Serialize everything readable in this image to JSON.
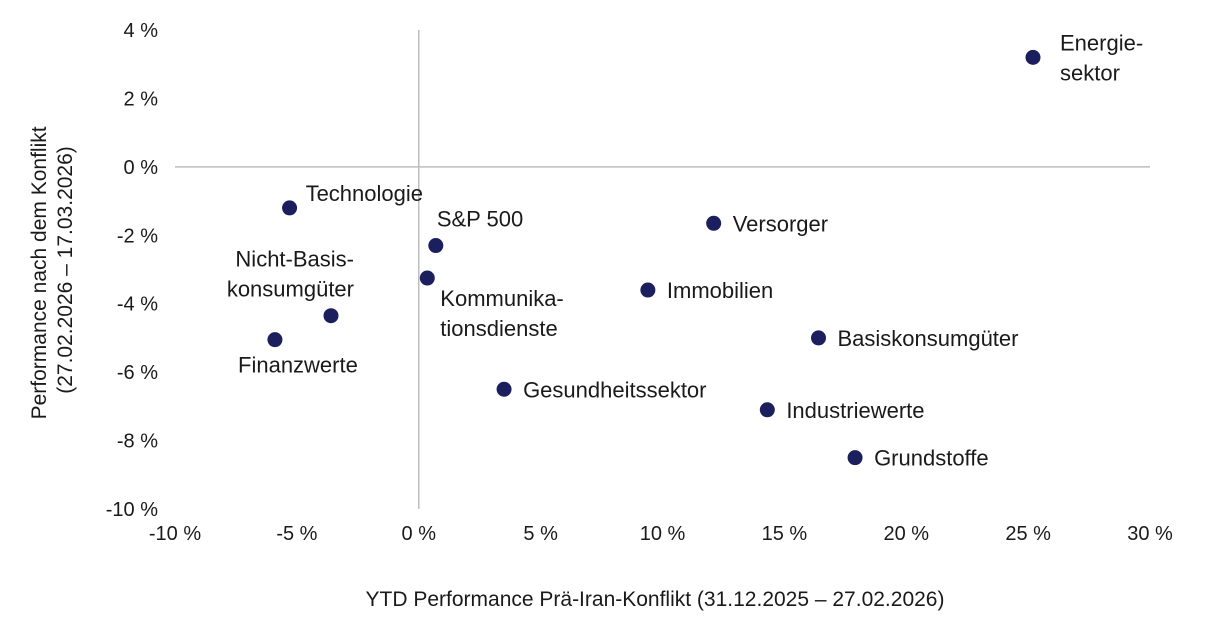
{
  "chart_data": {
    "type": "scatter",
    "title": "",
    "xlabel": "YTD Performance Prä-Iran-Konflikt (31.12.2025 – 27.02.2026)",
    "ylabel_lines": [
      "Performance nach dem Konflikt",
      "(27.02.2026 – 17.03.2026)"
    ],
    "xlim": [
      -10,
      30
    ],
    "ylim": [
      -10,
      4
    ],
    "x_ticks": [
      -10,
      -5,
      0,
      5,
      10,
      15,
      20,
      25,
      30
    ],
    "y_ticks": [
      4,
      2,
      0,
      -2,
      -4,
      -6,
      -8,
      -10
    ],
    "x_tick_labels": [
      "-10 %",
      "-5 %",
      "0 %",
      "5 %",
      "10 %",
      "15 %",
      "20 %",
      "25 %",
      "30 %"
    ],
    "y_tick_labels": [
      "4 %",
      "2 %",
      "0 %",
      "-2 %",
      "-4 %",
      "-6 %",
      "-8 %",
      "-10 %"
    ],
    "grid": false,
    "marker_color": "#1b1f5e",
    "points": [
      {
        "label": [
          "Energie-",
          "sektor"
        ],
        "x": 25.2,
        "y": 3.2,
        "pos": "right-up"
      },
      {
        "label": [
          "Technologie"
        ],
        "x": -5.3,
        "y": -1.2,
        "pos": "up-right"
      },
      {
        "label": [
          "S&P 500"
        ],
        "x": 0.7,
        "y": -2.3,
        "pos": "above"
      },
      {
        "label": [
          "Versorger"
        ],
        "x": 12.1,
        "y": -1.65,
        "pos": "right"
      },
      {
        "label": [
          "Kommunika-",
          "tionsdienste"
        ],
        "x": 0.35,
        "y": -3.25,
        "pos": "below-right"
      },
      {
        "label": [
          "Nicht-Basis-",
          "konsumgüter"
        ],
        "x": -3.6,
        "y": -4.35,
        "pos": "above-left"
      },
      {
        "label": [
          "Finanzwerte"
        ],
        "x": -5.9,
        "y": -5.05,
        "pos": "below"
      },
      {
        "label": [
          "Immobilien"
        ],
        "x": 9.4,
        "y": -3.6,
        "pos": "right"
      },
      {
        "label": [
          "Basiskonsumgüter"
        ],
        "x": 16.4,
        "y": -5.0,
        "pos": "right"
      },
      {
        "label": [
          "Gesundheitssektor"
        ],
        "x": 3.5,
        "y": -6.5,
        "pos": "right"
      },
      {
        "label": [
          "Industriewerte"
        ],
        "x": 14.3,
        "y": -7.1,
        "pos": "right"
      },
      {
        "label": [
          "Grundstoffe"
        ],
        "x": 17.9,
        "y": -8.5,
        "pos": "right"
      }
    ]
  }
}
